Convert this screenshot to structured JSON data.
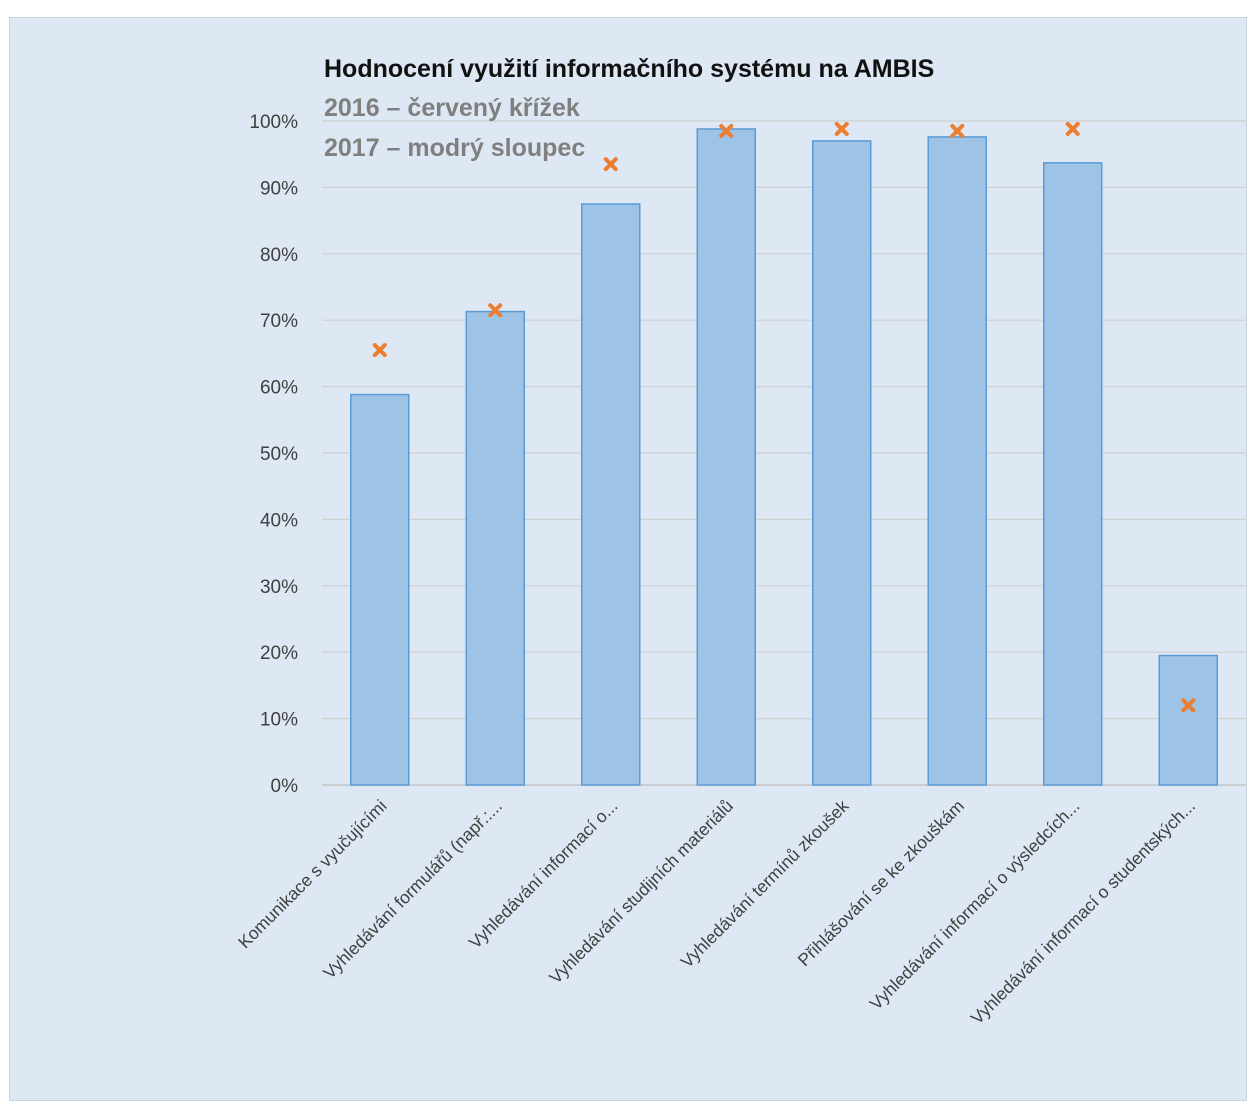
{
  "chart_data": {
    "type": "bar",
    "title": "Hodnocení využití informačního systému na AMBIS",
    "subtitle_lines": [
      "2016 – červený křížek",
      "2017 – modrý sloupec"
    ],
    "categories": [
      "Komunikace s vyučujícími",
      "Vyhledávání formulářů (např.:...",
      "Vyhledávání informací o...",
      "Vyhledávání studijních materiálů",
      "Vyhledávání termínů zkoušek",
      "Přihlášování se ke zkouškám",
      "Vyhledávání informací o výsledcích...",
      "Vyhledávání informací o studentských..."
    ],
    "series": [
      {
        "name": "2017 – modrý sloupec",
        "type": "bar",
        "color": "#9dc3e6",
        "values": [
          58.8,
          71.3,
          87.5,
          98.8,
          97.0,
          97.6,
          93.7,
          19.5
        ]
      },
      {
        "name": "2016 – červený křížek",
        "type": "marker",
        "color": "#ed7d31",
        "values": [
          65.5,
          71.5,
          93.5,
          98.5,
          98.8,
          98.5,
          98.8,
          12.0
        ]
      }
    ],
    "ylim": [
      0,
      100
    ],
    "y_ticks": [
      "0%",
      "10%",
      "20%",
      "30%",
      "40%",
      "50%",
      "60%",
      "70%",
      "80%",
      "90%",
      "100%"
    ],
    "grid": true,
    "xlabel": "",
    "ylabel": ""
  }
}
